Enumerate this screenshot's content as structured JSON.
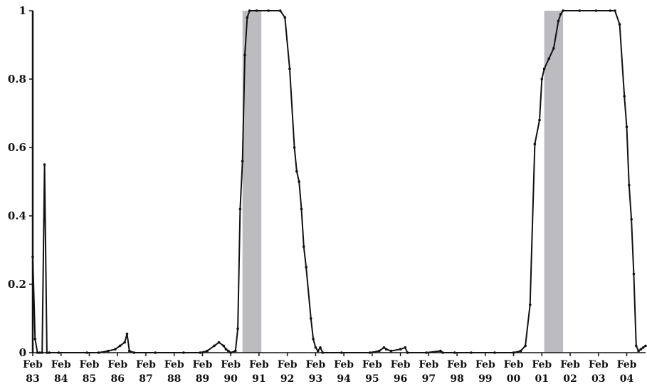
{
  "chart_data": {
    "type": "line",
    "title": "",
    "xlabel": "",
    "ylabel": "",
    "ylim": [
      0,
      1
    ],
    "xlim": [
      "1983-02",
      "2004-10"
    ],
    "yticks": [
      "0",
      "0.2",
      "0.4",
      "0.6",
      "0.8",
      "1"
    ],
    "xticks": [
      {
        "month": "Feb",
        "year": "83",
        "date": "1983-02"
      },
      {
        "month": "Feb",
        "year": "84",
        "date": "1984-02"
      },
      {
        "month": "Feb",
        "year": "85",
        "date": "1985-02"
      },
      {
        "month": "Feb",
        "year": "86",
        "date": "1986-02"
      },
      {
        "month": "Feb",
        "year": "87",
        "date": "1987-02"
      },
      {
        "month": "Feb",
        "year": "88",
        "date": "1988-02"
      },
      {
        "month": "Feb",
        "year": "89",
        "date": "1989-02"
      },
      {
        "month": "Feb",
        "year": "90",
        "date": "1990-02"
      },
      {
        "month": "Feb",
        "year": "91",
        "date": "1991-02"
      },
      {
        "month": "Feb",
        "year": "92",
        "date": "1992-02"
      },
      {
        "month": "Feb",
        "year": "93",
        "date": "1993-02"
      },
      {
        "month": "Feb",
        "year": "94",
        "date": "1994-02"
      },
      {
        "month": "Feb",
        "year": "95",
        "date": "1995-02"
      },
      {
        "month": "Feb",
        "year": "96",
        "date": "1996-02"
      },
      {
        "month": "Feb",
        "year": "97",
        "date": "1997-02"
      },
      {
        "month": "Feb",
        "year": "98",
        "date": "1998-02"
      },
      {
        "month": "Feb",
        "year": "99",
        "date": "1999-02"
      },
      {
        "month": "Feb",
        "year": "00",
        "date": "2000-02"
      },
      {
        "month": "Feb",
        "year": "01",
        "date": "2001-02"
      },
      {
        "month": "Feb",
        "year": "02",
        "date": "2002-02"
      },
      {
        "month": "Feb",
        "year": "03",
        "date": "2003-02"
      },
      {
        "month": "Feb",
        "year": "04",
        "date": "2004-02"
      }
    ],
    "shaded_periods": [
      {
        "start": "1990-07",
        "end": "1991-03"
      },
      {
        "start": "2001-03",
        "end": "2001-11"
      }
    ],
    "grid": false,
    "legend": "none",
    "colors": {
      "line": "#111111",
      "shade": "#bcbcc0"
    },
    "series": [
      {
        "points": [
          [
            "1983-02",
            0.28
          ],
          [
            "1983-03",
            0.04
          ],
          [
            "1983-04",
            0.0
          ],
          [
            "1983-05",
            0.0
          ],
          [
            "1983-06",
            0.0
          ],
          [
            "1983-07",
            0.55
          ],
          [
            "1983-08",
            0.0
          ],
          [
            "1983-09",
            0.0
          ],
          [
            "1984-01",
            0.0
          ],
          [
            "1985-01",
            0.0
          ],
          [
            "1985-06",
            0.0
          ],
          [
            "1985-10",
            0.005
          ],
          [
            "1986-01",
            0.01
          ],
          [
            "1986-03",
            0.02
          ],
          [
            "1986-05",
            0.03
          ],
          [
            "1986-06",
            0.055
          ],
          [
            "1986-07",
            0.005
          ],
          [
            "1986-09",
            0.0
          ],
          [
            "1987-06",
            0.0
          ],
          [
            "1988-06",
            0.0
          ],
          [
            "1989-01",
            0.0
          ],
          [
            "1989-04",
            0.005
          ],
          [
            "1989-07",
            0.02
          ],
          [
            "1989-09",
            0.03
          ],
          [
            "1989-11",
            0.02
          ],
          [
            "1989-12",
            0.01
          ],
          [
            "1990-01",
            0.005
          ],
          [
            "1990-02",
            0.0
          ],
          [
            "1990-04",
            0.005
          ],
          [
            "1990-05",
            0.07
          ],
          [
            "1990-06",
            0.42
          ],
          [
            "1990-07",
            0.56
          ],
          [
            "1990-08",
            0.87
          ],
          [
            "1990-09",
            0.98
          ],
          [
            "1990-10",
            1.0
          ],
          [
            "1991-01",
            1.0
          ],
          [
            "1991-06",
            1.0
          ],
          [
            "1991-11",
            1.0
          ],
          [
            "1992-01",
            0.98
          ],
          [
            "1992-03",
            0.83
          ],
          [
            "1992-05",
            0.6
          ],
          [
            "1992-06",
            0.53
          ],
          [
            "1992-07",
            0.5
          ],
          [
            "1992-08",
            0.42
          ],
          [
            "1992-09",
            0.31
          ],
          [
            "1992-10",
            0.25
          ],
          [
            "1992-12",
            0.1
          ],
          [
            "1993-01",
            0.04
          ],
          [
            "1993-02",
            0.015
          ],
          [
            "1993-03",
            0.005
          ],
          [
            "1993-04",
            0.015
          ],
          [
            "1993-05",
            0.0
          ],
          [
            "1994-01",
            0.0
          ],
          [
            "1995-01",
            0.0
          ],
          [
            "1995-05",
            0.005
          ],
          [
            "1995-07",
            0.015
          ],
          [
            "1995-08",
            0.01
          ],
          [
            "1995-10",
            0.005
          ],
          [
            "1996-02",
            0.01
          ],
          [
            "1996-04",
            0.015
          ],
          [
            "1996-05",
            0.0
          ],
          [
            "1997-01",
            0.0
          ],
          [
            "1997-07",
            0.005
          ],
          [
            "1997-08",
            0.0
          ],
          [
            "1998-01",
            0.0
          ],
          [
            "1998-08",
            0.0
          ],
          [
            "1999-06",
            0.0
          ],
          [
            "2000-02",
            0.0
          ],
          [
            "2000-05",
            0.005
          ],
          [
            "2000-07",
            0.02
          ],
          [
            "2000-09",
            0.14
          ],
          [
            "2000-11",
            0.61
          ],
          [
            "2001-01",
            0.68
          ],
          [
            "2001-02",
            0.8
          ],
          [
            "2001-03",
            0.83
          ],
          [
            "2001-05",
            0.86
          ],
          [
            "2001-07",
            0.89
          ],
          [
            "2001-09",
            0.97
          ],
          [
            "2001-10",
            0.99
          ],
          [
            "2001-11",
            1.0
          ],
          [
            "2002-06",
            1.0
          ],
          [
            "2003-01",
            1.0
          ],
          [
            "2003-07",
            1.0
          ],
          [
            "2003-09",
            1.0
          ],
          [
            "2003-11",
            0.96
          ],
          [
            "2004-01",
            0.75
          ],
          [
            "2004-02",
            0.66
          ],
          [
            "2004-03",
            0.49
          ],
          [
            "2004-04",
            0.39
          ],
          [
            "2004-05",
            0.23
          ],
          [
            "2004-06",
            0.02
          ],
          [
            "2004-07",
            0.005
          ],
          [
            "2004-08",
            0.01
          ],
          [
            "2004-09",
            0.015
          ],
          [
            "2004-10",
            0.02
          ]
        ]
      }
    ]
  }
}
